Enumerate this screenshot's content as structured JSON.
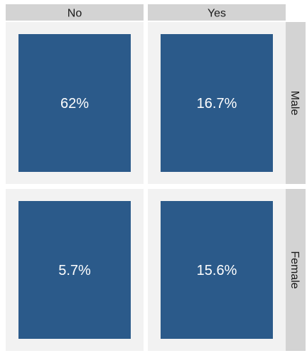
{
  "chart_data": {
    "type": "table",
    "columns": [
      "No",
      "Yes"
    ],
    "rows": [
      "Male",
      "Female"
    ],
    "cells": [
      [
        {
          "value": 62,
          "label": "62%"
        },
        {
          "value": 16.7,
          "label": "16.7%"
        }
      ],
      [
        {
          "value": 5.7,
          "label": "5.7%"
        },
        {
          "value": 15.6,
          "label": "15.6%"
        }
      ]
    ],
    "colors": {
      "tile": "#2b5a8a",
      "panel": "#f2f2f2",
      "strip": "#d3d3d3",
      "text_on_tile": "#ffffff",
      "strip_text": "#1a1a1a"
    }
  }
}
